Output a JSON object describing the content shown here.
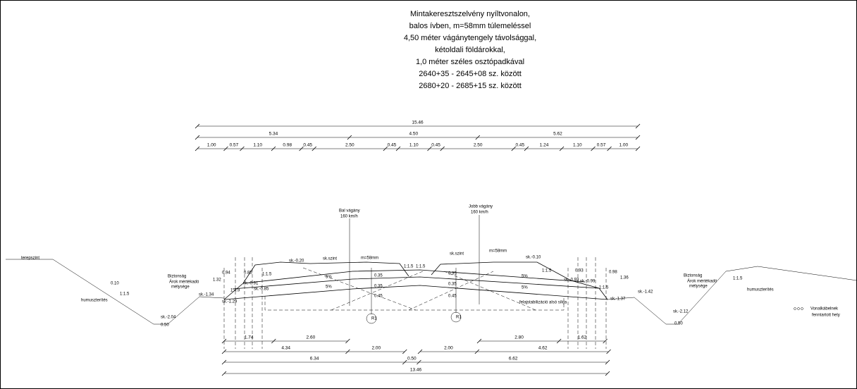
{
  "title_lines": [
    "Mintakeresztszelvény nyíltvonalon,",
    "balos ívben, m=58mm túlemeléssel",
    "4,50 méter vágánytengely távolsággal,",
    "kétoldali földárokkal,",
    "1,0 méter széles osztópadkával",
    "2640+35 - 2645+08 sz. között",
    "2680+20 - 2685+15 sz. között"
  ],
  "top_dimensions": {
    "total": "15.46",
    "sections": [
      "5.34",
      "4.50",
      "5.62"
    ],
    "details": [
      "1.00",
      "0.57",
      "1.10",
      "0.98",
      "0.45",
      "2.50",
      "0.45",
      "1.10",
      "0.45",
      "2.50",
      "0.45",
      "1.24",
      "1.10",
      "0.57",
      "1.00"
    ]
  },
  "bottom_dimensions": {
    "row1": [
      "1.74",
      "2.60",
      "2.80",
      "1.62"
    ],
    "row2": [
      "4.34",
      "2.00",
      "2.00",
      "4.62"
    ],
    "row3": [
      "6.34",
      "0.50",
      "6.62"
    ],
    "total": "13.46"
  },
  "labels": [
    "terepszint",
    "humuszterítés",
    "0.10",
    "1:1.5",
    "Biztonság",
    "Árok mértékadó",
    "mélysége",
    "sk.-2.04",
    "0.50",
    "sk.-1.34",
    "sk.-1.29",
    "1.32",
    "0.94",
    "0.85",
    "1:1.5",
    "sk.-0.91",
    "sk.-0.85",
    "1:4.9",
    "sk.-0.20",
    "sk.szint",
    "m=58mm",
    "Bal vágány",
    "160 km/h",
    "5%",
    "5%",
    "0.35",
    "0.35",
    "0.45",
    "R1",
    "1:1.5",
    "1:1.5",
    "Jobb vágány",
    "160 km/h",
    "sk.szint",
    "m=58mm",
    "sk.-0.10",
    "0.35",
    "0.35",
    "0.45",
    "5%",
    "5%",
    "1:1.5",
    "R1",
    "felajstabilizáció alsó síkja",
    "0.93",
    "0.98",
    "1.36",
    "sk.-0.93",
    "sk.-0.99",
    "1:1.5",
    "sk.-1.37",
    "sk.-1.42",
    "Biztonság",
    "Árok mértékadó",
    "mélysége",
    "humuszterítés",
    "1:1.5",
    "sk.-2.12",
    "0.50",
    "Vonalkábelnek",
    "fenntartott hely"
  ]
}
